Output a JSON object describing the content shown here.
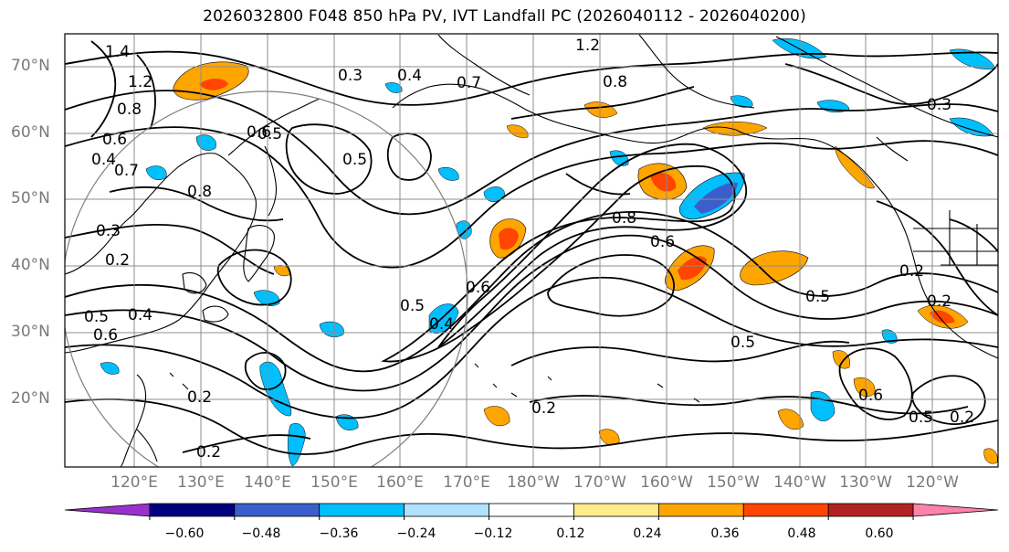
{
  "map": {
    "title": "2026032800 F048 850 hPa PV, IVT Landfall PC (2026040112 - 2026040200)",
    "lat_labels": [
      "70°N",
      "60°N",
      "50°N",
      "40°N",
      "30°N",
      "20°N"
    ],
    "lon_labels": [
      "120°E",
      "130°E",
      "140°E",
      "150°E",
      "160°E",
      "170°E",
      "180°W",
      "170°W",
      "160°W",
      "150°W",
      "140°W",
      "130°W",
      "120°W"
    ],
    "contour_labels": [
      "1.4",
      "1.2",
      "0.8",
      "0.6",
      "0.4",
      "0.3",
      "0.2",
      "0.5",
      "0.6",
      "0.4",
      "0.7",
      "0.8",
      "1.2",
      "0.8",
      "0.6",
      "0.5",
      "0.4",
      "0.3",
      "0.2",
      "0.5",
      "0.2",
      "0.4",
      "0.5",
      "0.6",
      "0.8",
      "0.7",
      "0.5",
      "0.2",
      "0.6",
      "0.5",
      "0.2",
      "0.2",
      "0.5",
      "0.3",
      "0.6",
      "0.2"
    ],
    "colorbar": {
      "colors": [
        "#9932CC",
        "#000080",
        "#3A5FCD",
        "#00BFFF",
        "#B0E2FF",
        "#FFFFFF",
        "#FFEC8B",
        "#FFA500",
        "#FF4500",
        "#B22222",
        "#FF82AB"
      ],
      "ticks": [
        "−0.60",
        "−0.48",
        "−0.36",
        "−0.24",
        "−0.12",
        "0.12",
        "0.24",
        "0.36",
        "0.48",
        "0.60"
      ]
    }
  }
}
